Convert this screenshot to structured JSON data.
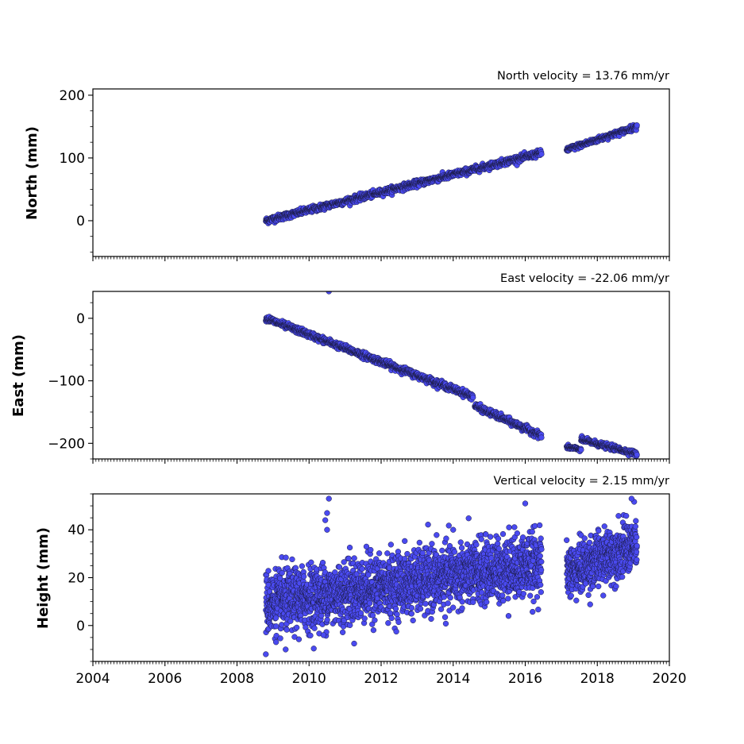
{
  "chart_data": [
    {
      "type": "scatter",
      "title": "North velocity = 13.76 mm/yr",
      "ylabel": "North (mm)",
      "xlabel": "",
      "xlim": [
        2004,
        2020
      ],
      "ylim": [
        -57,
        210
      ],
      "yticks": [
        0,
        100,
        200
      ],
      "xticks": [
        2004,
        2006,
        2008,
        2010,
        2012,
        2014,
        2016,
        2018,
        2020
      ],
      "xtick_labels_visible": false,
      "marker_color": "#4a4af0",
      "segments": [
        {
          "x_start": 2008.8,
          "x_end": 2016.45,
          "y_start": 0,
          "y_end": 108,
          "noise": 2.5
        },
        {
          "x_start": 2017.15,
          "x_end": 2019.1,
          "y_start": 113,
          "y_end": 150,
          "noise": 2.0
        }
      ],
      "outliers": []
    },
    {
      "type": "scatter",
      "title": "East velocity = -22.06 mm/yr",
      "ylabel": "East (mm)",
      "xlabel": "",
      "xlim": [
        2004,
        2020
      ],
      "ylim": [
        -225,
        43
      ],
      "yticks": [
        -200,
        -100,
        0
      ],
      "xticks": [
        2004,
        2006,
        2008,
        2010,
        2012,
        2014,
        2016,
        2018,
        2020
      ],
      "xtick_labels_visible": false,
      "marker_color": "#4a4af0",
      "segments": [
        {
          "x_start": 2008.8,
          "x_end": 2014.55,
          "y_start": 0,
          "y_end": -125,
          "noise": 2.5
        },
        {
          "x_start": 2014.6,
          "x_end": 2016.45,
          "y_start": -140,
          "y_end": -188,
          "noise": 2.5
        },
        {
          "x_start": 2017.15,
          "x_end": 2017.55,
          "y_start": -206,
          "y_end": -210,
          "noise": 1.5
        },
        {
          "x_start": 2017.55,
          "x_end": 2019.1,
          "y_start": -194,
          "y_end": -217,
          "noise": 2.0
        }
      ],
      "outliers": [
        {
          "x": 2010.55,
          "y": 43
        }
      ]
    },
    {
      "type": "scatter",
      "title": "Vertical velocity = 2.15 mm/yr",
      "ylabel": "Height (mm)",
      "xlabel": "",
      "xlim": [
        2004,
        2020
      ],
      "ylim": [
        -15,
        55
      ],
      "yticks": [
        0,
        20,
        40
      ],
      "xticks": [
        2004,
        2006,
        2008,
        2010,
        2012,
        2014,
        2016,
        2018,
        2020
      ],
      "xtick_labels_visible": true,
      "marker_color": "#4a4af0",
      "segments": [
        {
          "x_start": 2008.8,
          "x_end": 2016.45,
          "y_start": 9,
          "y_end": 26,
          "noise": 6.5
        },
        {
          "x_start": 2017.15,
          "x_end": 2019.1,
          "y_start": 22,
          "y_end": 34,
          "noise": 5.5
        }
      ],
      "outliers": [
        {
          "x": 2010.55,
          "y": 53
        },
        {
          "x": 2010.5,
          "y": 47
        },
        {
          "x": 2008.8,
          "y": -12
        },
        {
          "x": 2009.35,
          "y": -10
        },
        {
          "x": 2010.4,
          "y": -4
        },
        {
          "x": 2010.5,
          "y": 40
        },
        {
          "x": 2016.0,
          "y": 51
        },
        {
          "x": 2018.95,
          "y": 53
        },
        {
          "x": 2015.55,
          "y": 41
        },
        {
          "x": 2010.45,
          "y": 44
        },
        {
          "x": 2011.1,
          "y": 28
        },
        {
          "x": 2014.0,
          "y": 40
        }
      ]
    }
  ]
}
